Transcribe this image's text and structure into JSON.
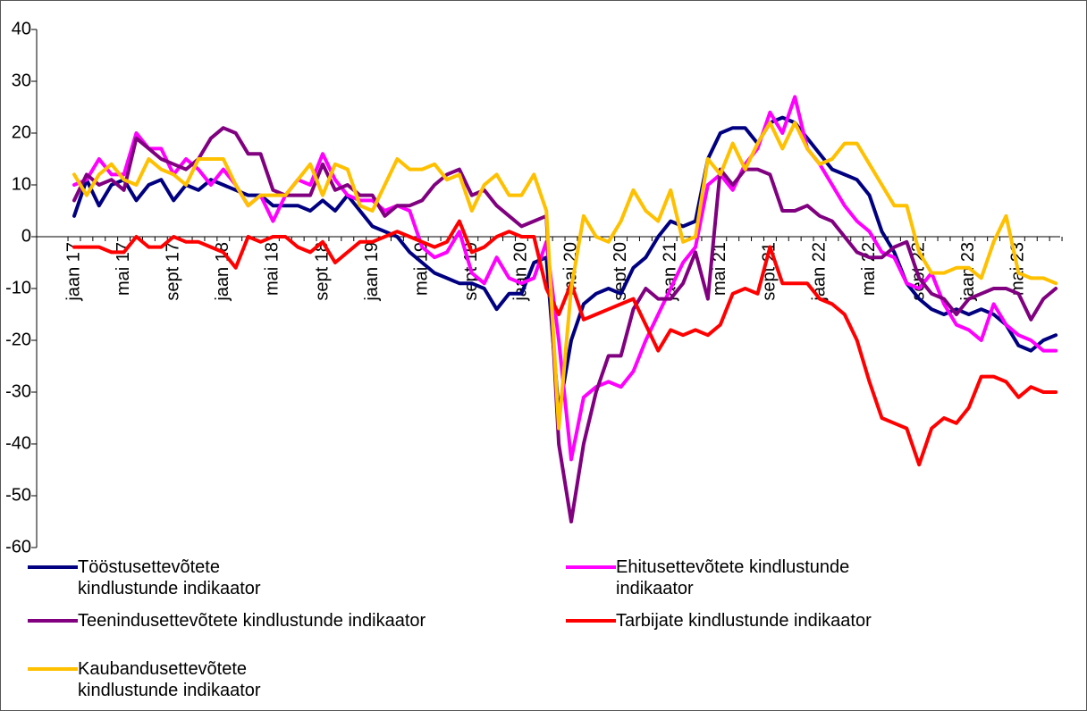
{
  "chart_data": {
    "type": "line",
    "categories": [
      "jaan 17",
      null,
      null,
      null,
      "mai 17",
      null,
      null,
      null,
      "sept 17",
      null,
      null,
      null,
      "jaan 18",
      null,
      null,
      null,
      "mai 18",
      null,
      null,
      null,
      "sept 18",
      null,
      null,
      null,
      "jaan 19",
      null,
      null,
      null,
      "mai 19",
      null,
      null,
      null,
      "sept 19",
      null,
      null,
      null,
      "jaan 20",
      null,
      null,
      null,
      "mai 20",
      null,
      null,
      null,
      "sept 20",
      null,
      null,
      null,
      "jaan 21",
      null,
      null,
      null,
      "mai 21",
      null,
      null,
      null,
      "sept 21",
      null,
      null,
      null,
      "jaan 22",
      null,
      null,
      null,
      "mai 22",
      null,
      null,
      null,
      "sept 22",
      null,
      null,
      null,
      "jaan 23",
      null,
      null,
      null,
      "mai 23",
      null,
      null,
      null
    ],
    "series": [
      {
        "name": "Tööstusettevõtete kindlustunde indikaator",
        "color": "#000080",
        "values": [
          4,
          11,
          6,
          10,
          11,
          7,
          10,
          11,
          7,
          10,
          9,
          11,
          10,
          9,
          8,
          8,
          6,
          6,
          6,
          5,
          7,
          5,
          8,
          5,
          2,
          1,
          0,
          -3,
          -5,
          -7,
          -8,
          -9,
          -9,
          -10,
          -14,
          -11,
          -11,
          -5,
          -4,
          -34,
          -20,
          -13,
          -11,
          -10,
          -11,
          -6,
          -4,
          0,
          3,
          2,
          3,
          15,
          20,
          21,
          21,
          18,
          22,
          23,
          22,
          19,
          16,
          13,
          12,
          11,
          8,
          1,
          -3,
          -9,
          -12,
          -14,
          -15,
          -14,
          -15,
          -14,
          -15,
          -17,
          -21,
          -22,
          -20,
          -19
        ]
      },
      {
        "name": "Ehitusettevõtete kindlustunde indikaator",
        "color": "#ff00ff",
        "values": [
          10,
          11,
          15,
          12,
          12,
          20,
          17,
          17,
          12,
          15,
          13,
          10,
          13,
          10,
          6,
          8,
          3,
          8,
          11,
          10,
          16,
          11,
          8,
          7,
          7,
          5,
          6,
          5,
          -2,
          -4,
          -3,
          1,
          -7,
          -9,
          -4,
          -8,
          -9,
          -8,
          -1,
          -20,
          -43,
          -31,
          -29,
          -28,
          -29,
          -26,
          -20,
          -15,
          -10,
          -5,
          -2,
          10,
          12,
          9,
          14,
          17,
          24,
          20,
          27,
          17,
          14,
          10,
          6,
          3,
          1,
          -3,
          -4,
          -9,
          -10,
          -7,
          -13,
          -17,
          -18,
          -20,
          -13,
          -17,
          -19,
          -20,
          -22,
          -22
        ]
      },
      {
        "name": "Teenindusettevõtete kindlustunde indikaator",
        "color": "#800080",
        "values": [
          7,
          12,
          10,
          11,
          9,
          19,
          17,
          15,
          14,
          13,
          15,
          19,
          21,
          20,
          16,
          16,
          9,
          8,
          8,
          8,
          14,
          9,
          10,
          8,
          8,
          4,
          6,
          6,
          7,
          10,
          12,
          13,
          8,
          9,
          6,
          4,
          2,
          3,
          4,
          -40,
          -55,
          -40,
          -30,
          -23,
          -23,
          -14,
          -10,
          -12,
          -12,
          -9,
          -3,
          -12,
          13,
          10,
          13,
          13,
          12,
          5,
          5,
          6,
          4,
          3,
          0,
          -3,
          -4,
          -4,
          -2,
          -1,
          -8,
          -11,
          -12,
          -15,
          -12,
          -11,
          -10,
          -10,
          -11,
          -16,
          -12,
          -10
        ]
      },
      {
        "name": "Tarbijate kindlustunde indikaator",
        "color": "#ff0000",
        "values": [
          -2,
          -2,
          -2,
          -3,
          -3,
          0,
          -2,
          -2,
          0,
          -1,
          -1,
          -2,
          -3,
          -6,
          0,
          -1,
          0,
          0,
          -2,
          -3,
          -1,
          -5,
          -3,
          -1,
          -1,
          0,
          1,
          0,
          -1,
          -2,
          -1,
          3,
          -3,
          -2,
          0,
          1,
          0,
          0,
          -10,
          -15,
          -9,
          -16,
          -15,
          -14,
          -13,
          -12,
          -17,
          -22,
          -18,
          -19,
          -18,
          -19,
          -17,
          -11,
          -10,
          -11,
          -2,
          -9,
          -9,
          -9,
          -12,
          -13,
          -15,
          -20,
          -28,
          -35,
          -36,
          -37,
          -44,
          -37,
          -35,
          -36,
          -33,
          -27,
          -27,
          -28,
          -31,
          -29,
          -30,
          -30
        ]
      },
      {
        "name": "Kaubandusettevõtete kindlustunde indikaator",
        "color": "#ffc000",
        "values": [
          12,
          8,
          12,
          14,
          11,
          10,
          15,
          13,
          12,
          10,
          15,
          15,
          15,
          10,
          6,
          8,
          8,
          8,
          11,
          14,
          8,
          14,
          13,
          6,
          5,
          10,
          15,
          13,
          13,
          14,
          11,
          12,
          5,
          10,
          12,
          8,
          8,
          12,
          5,
          -37,
          -10,
          4,
          0,
          -1,
          3,
          9,
          5,
          3,
          9,
          -1,
          0,
          15,
          12,
          18,
          13,
          18,
          22,
          17,
          22,
          17,
          14,
          15,
          18,
          18,
          14,
          10,
          6,
          6,
          -3,
          -7,
          -7,
          -6,
          -6,
          -8,
          -1,
          4,
          -7,
          -8,
          -8,
          -9
        ]
      }
    ],
    "ylim": [
      -60,
      40
    ],
    "yticks": [
      -60,
      -50,
      -40,
      -30,
      -20,
      -10,
      0,
      10,
      20,
      30,
      40
    ]
  }
}
